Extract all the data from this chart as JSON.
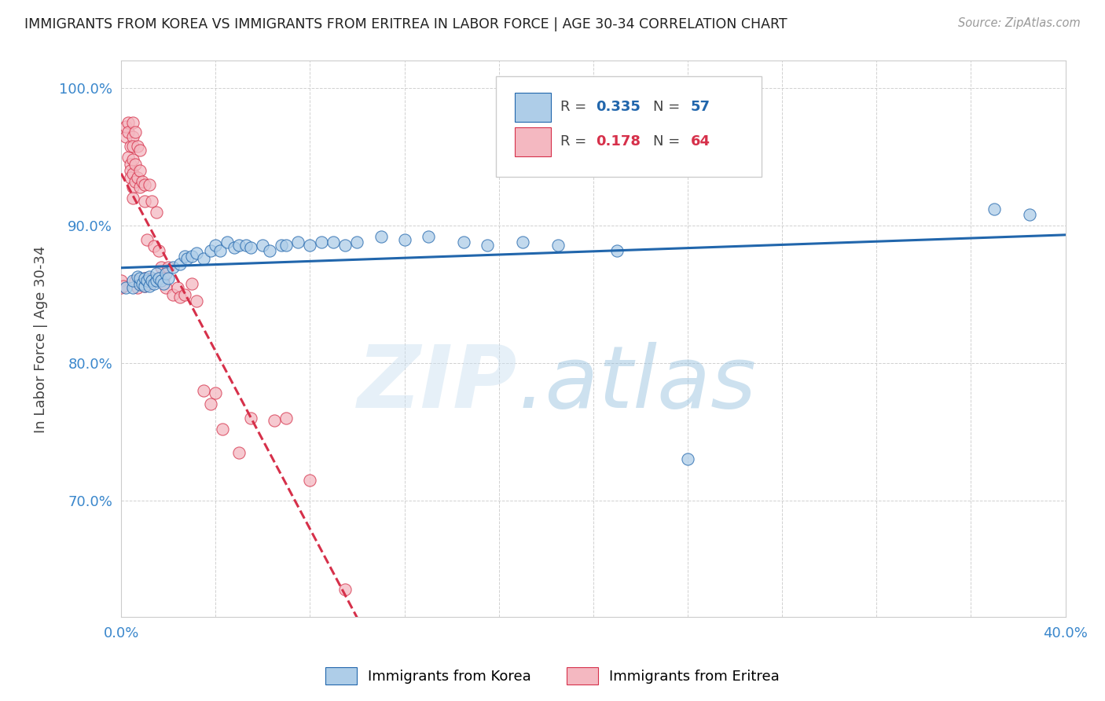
{
  "title": "IMMIGRANTS FROM KOREA VS IMMIGRANTS FROM ERITREA IN LABOR FORCE | AGE 30-34 CORRELATION CHART",
  "source": "Source: ZipAtlas.com",
  "ylabel": "In Labor Force | Age 30-34",
  "xlim": [
    0.0,
    0.4
  ],
  "ylim": [
    0.615,
    1.02
  ],
  "korea_R": 0.335,
  "korea_N": 57,
  "eritrea_R": 0.178,
  "eritrea_N": 64,
  "korea_color": "#aecde8",
  "eritrea_color": "#f4b8c1",
  "korea_line_color": "#2166ac",
  "eritrea_line_color": "#d6304a",
  "korea_x": [
    0.002,
    0.005,
    0.005,
    0.007,
    0.008,
    0.008,
    0.009,
    0.01,
    0.01,
    0.011,
    0.012,
    0.012,
    0.013,
    0.014,
    0.015,
    0.015,
    0.016,
    0.017,
    0.018,
    0.019,
    0.02,
    0.022,
    0.025,
    0.027,
    0.028,
    0.03,
    0.032,
    0.035,
    0.038,
    0.04,
    0.042,
    0.045,
    0.048,
    0.05,
    0.053,
    0.055,
    0.06,
    0.063,
    0.068,
    0.07,
    0.075,
    0.08,
    0.085,
    0.09,
    0.095,
    0.1,
    0.11,
    0.12,
    0.13,
    0.145,
    0.155,
    0.17,
    0.185,
    0.21,
    0.24,
    0.37,
    0.385
  ],
  "korea_y": [
    0.855,
    0.855,
    0.86,
    0.863,
    0.857,
    0.862,
    0.858,
    0.856,
    0.862,
    0.86,
    0.863,
    0.856,
    0.86,
    0.858,
    0.86,
    0.865,
    0.862,
    0.86,
    0.858,
    0.865,
    0.862,
    0.87,
    0.872,
    0.878,
    0.876,
    0.878,
    0.88,
    0.876,
    0.882,
    0.886,
    0.882,
    0.888,
    0.884,
    0.886,
    0.886,
    0.884,
    0.886,
    0.882,
    0.886,
    0.886,
    0.888,
    0.886,
    0.888,
    0.888,
    0.886,
    0.888,
    0.892,
    0.89,
    0.892,
    0.888,
    0.886,
    0.888,
    0.886,
    0.882,
    0.73,
    0.912,
    0.908
  ],
  "eritrea_x": [
    0.0,
    0.0,
    0.001,
    0.002,
    0.002,
    0.003,
    0.003,
    0.003,
    0.004,
    0.004,
    0.004,
    0.004,
    0.005,
    0.005,
    0.005,
    0.005,
    0.005,
    0.005,
    0.005,
    0.006,
    0.006,
    0.006,
    0.006,
    0.007,
    0.007,
    0.007,
    0.008,
    0.008,
    0.008,
    0.008,
    0.009,
    0.009,
    0.01,
    0.01,
    0.01,
    0.01,
    0.011,
    0.012,
    0.012,
    0.013,
    0.013,
    0.014,
    0.015,
    0.016,
    0.017,
    0.018,
    0.019,
    0.02,
    0.022,
    0.024,
    0.025,
    0.027,
    0.03,
    0.032,
    0.035,
    0.038,
    0.04,
    0.043,
    0.05,
    0.055,
    0.065,
    0.07,
    0.08,
    0.095
  ],
  "eritrea_y": [
    0.855,
    0.86,
    0.856,
    0.965,
    0.972,
    0.975,
    0.968,
    0.95,
    0.958,
    0.945,
    0.94,
    0.935,
    0.975,
    0.965,
    0.958,
    0.948,
    0.938,
    0.928,
    0.92,
    0.968,
    0.945,
    0.932,
    0.86,
    0.958,
    0.935,
    0.855,
    0.955,
    0.94,
    0.928,
    0.858,
    0.932,
    0.858,
    0.93,
    0.918,
    0.862,
    0.856,
    0.89,
    0.93,
    0.858,
    0.918,
    0.862,
    0.885,
    0.91,
    0.882,
    0.87,
    0.862,
    0.855,
    0.87,
    0.85,
    0.855,
    0.848,
    0.85,
    0.858,
    0.845,
    0.78,
    0.77,
    0.778,
    0.752,
    0.735,
    0.76,
    0.758,
    0.76,
    0.715,
    0.635
  ]
}
